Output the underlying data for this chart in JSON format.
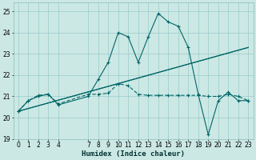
{
  "xlabel": "Humidex (Indice chaleur)",
  "bg_color": "#cce8e4",
  "grid_color": "#99cccc",
  "line_color": "#006666",
  "xlim": [
    -0.5,
    23.5
  ],
  "ylim": [
    19,
    25.4
  ],
  "yticks": [
    19,
    20,
    21,
    22,
    23,
    24,
    25
  ],
  "xtick_positions": [
    0,
    1,
    2,
    3,
    4,
    7,
    8,
    9,
    10,
    11,
    12,
    13,
    14,
    15,
    16,
    17,
    18,
    19,
    20,
    21,
    22,
    23
  ],
  "xtick_labels": [
    "0",
    "1",
    "2",
    "3",
    "4",
    "7",
    "8",
    "9",
    "10",
    "11",
    "12",
    "13",
    "14",
    "15",
    "16",
    "17",
    "18",
    "19",
    "20",
    "21",
    "22",
    "23"
  ],
  "line1_x": [
    0,
    1,
    2,
    3,
    4,
    7,
    8,
    9,
    10,
    11,
    12,
    13,
    14,
    15,
    16,
    17,
    18,
    19,
    20,
    21,
    22,
    23
  ],
  "line1_y": [
    20.3,
    20.8,
    21.0,
    21.1,
    20.6,
    21.0,
    21.8,
    22.6,
    24.0,
    23.8,
    22.6,
    23.8,
    24.9,
    24.5,
    24.3,
    23.3,
    21.1,
    19.2,
    20.8,
    21.2,
    20.8,
    20.8
  ],
  "line2_x": [
    0,
    1,
    2,
    3,
    4,
    7,
    8,
    9,
    10,
    11,
    12,
    13,
    14,
    15,
    16,
    17,
    18,
    19,
    20,
    21,
    22,
    23
  ],
  "line2_y": [
    20.3,
    20.8,
    21.05,
    21.1,
    20.65,
    21.1,
    21.1,
    21.15,
    21.6,
    21.5,
    21.1,
    21.05,
    21.05,
    21.05,
    21.05,
    21.05,
    21.05,
    21.0,
    21.0,
    21.1,
    21.0,
    20.8
  ],
  "line3_x": [
    0,
    23
  ],
  "line3_y": [
    20.3,
    23.3
  ],
  "line4_x": [
    0,
    10,
    23
  ],
  "line4_y": [
    20.3,
    21.6,
    23.3
  ]
}
